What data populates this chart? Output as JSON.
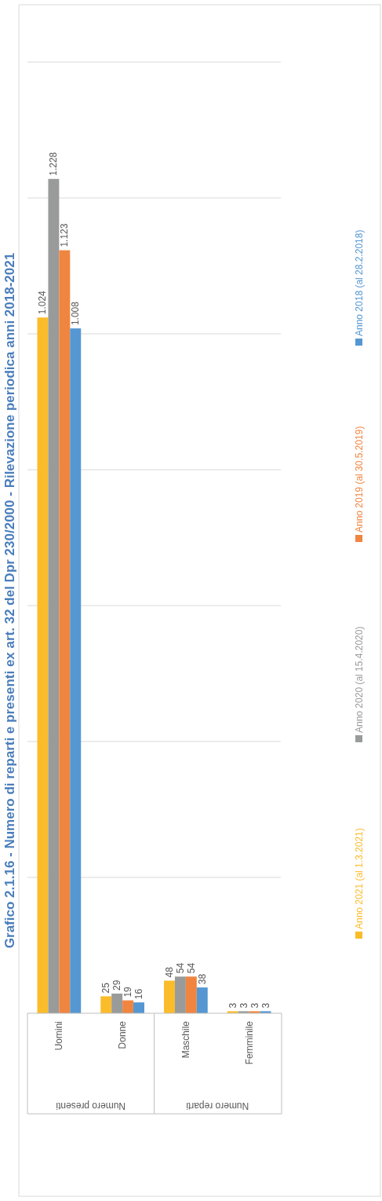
{
  "chart_data": {
    "type": "bar",
    "title": "Grafico 2.1.16 - Numero di reparti e presenti ex art. 32 del Dpr 230/2000 - Rilevazione periodica anni 2018-2021",
    "categories": [
      "Uomini",
      "Donne",
      "Maschile",
      "Femminile"
    ],
    "annotations": [
      "Numero presenti",
      "Numero reparti"
    ],
    "series": [
      {
        "name": "Anno 2021 (al 1.3.2021)",
        "color": "#fbbc2a",
        "values": [
          1024,
          25,
          48,
          3
        ],
        "value_labels": [
          "1.024",
          "25",
          "48",
          "3"
        ]
      },
      {
        "name": "Anno 2020 (al 15.4.2020)",
        "color": "#999b9b",
        "values": [
          1228,
          29,
          54,
          3
        ],
        "value_labels": [
          "1.228",
          "29",
          "54",
          "3"
        ]
      },
      {
        "name": "Anno 2019 (al 30.5.2019)",
        "color": "#f08540",
        "values": [
          1123,
          19,
          54,
          3
        ],
        "value_labels": [
          "1.123",
          "19",
          "54",
          "3"
        ]
      },
      {
        "name": "Anno 2018 (al 28.2.2018)",
        "color": "#5597d2",
        "values": [
          1008,
          16,
          38,
          3
        ],
        "value_labels": [
          "1.008",
          "16",
          "38",
          "3"
        ]
      }
    ],
    "ylim": [
      0,
      1400
    ],
    "yticks": [
      {
        "value": 0,
        "label": null
      },
      {
        "value": 200,
        "label": null
      },
      {
        "value": 400,
        "label": null
      },
      {
        "value": 600,
        "label": null
      },
      {
        "value": 800,
        "label": null
      },
      {
        "value": 1000,
        "label": null
      },
      {
        "value": 1200,
        "label": null
      },
      {
        "value": 1400,
        "label": null
      }
    ],
    "grid": "y",
    "legend": "bottom",
    "tick_labels": "x"
  }
}
